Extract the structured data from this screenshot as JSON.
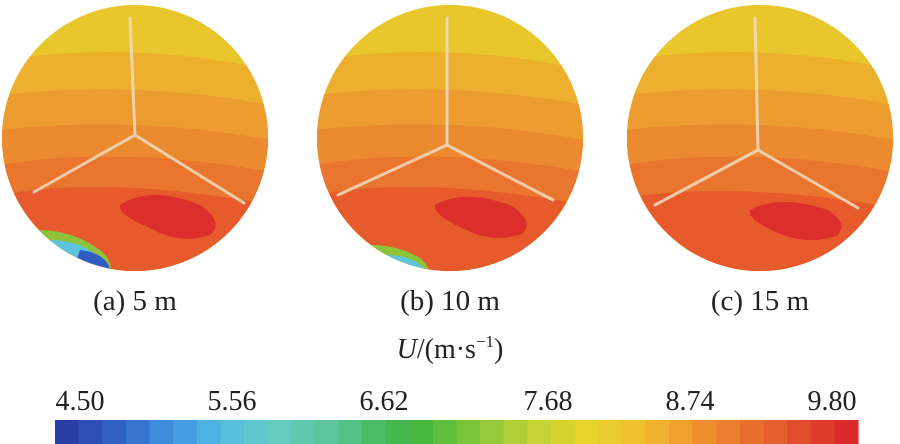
{
  "panels": [
    {
      "caption": "(a) 5 m"
    },
    {
      "caption": "(b) 10 m"
    },
    {
      "caption": "(c) 15 m"
    }
  ],
  "colorbar": {
    "unit_symbol": "U",
    "unit_rest": "/(m·s",
    "unit_exponent": "−1",
    "unit_close": ")",
    "ticks": [
      "4.50",
      "5.56",
      "6.62",
      "7.68",
      "8.74",
      "9.80"
    ],
    "range": [
      4.5,
      9.8
    ],
    "levels": 34,
    "colors": [
      "#2b3ea6",
      "#2f5cc0",
      "#3a84d8",
      "#4aa8e4",
      "#5cc4dc",
      "#66ccbc",
      "#5ec49c",
      "#4ebc6e",
      "#3cb43c",
      "#6cc23a",
      "#a0cc3a",
      "#cad434",
      "#e6d42c",
      "#f0c42e",
      "#f2a42e",
      "#ee8630",
      "#e96a2e",
      "#e04a2a",
      "#dc2a2a"
    ]
  },
  "field_colors": {
    "top": "#e8c62c",
    "upper": "#ecb02e",
    "middle": "#ed9c30",
    "lower_mid": "#ec8a30",
    "low": "#e9752f",
    "bottom": "#e65a2c",
    "hot": "#dc2e2a",
    "cold_blue": "#2f5cc0",
    "cold_cyan": "#5cc4dc",
    "cold_green": "#8ec43c"
  }
}
